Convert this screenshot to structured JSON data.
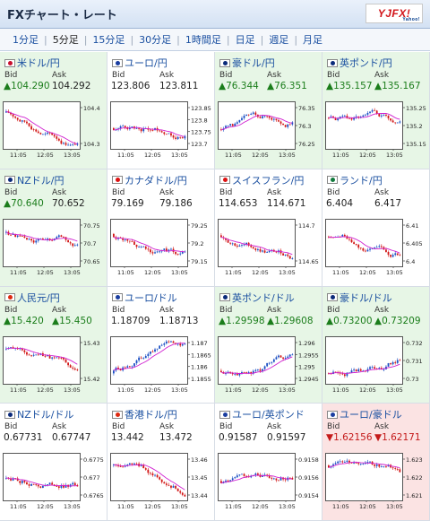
{
  "header": {
    "title": "FXチャート・レート",
    "logo": "YJFX!",
    "logo_sub": "Yahoo!"
  },
  "tabs": [
    {
      "label": "1分足",
      "active": false
    },
    {
      "label": "5分足",
      "active": true
    },
    {
      "label": "15分足",
      "active": false
    },
    {
      "label": "30分足",
      "active": false
    },
    {
      "label": "1時間足",
      "active": false
    },
    {
      "label": "日足",
      "active": false
    },
    {
      "label": "週足",
      "active": false
    },
    {
      "label": "月足",
      "active": false
    }
  ],
  "labels": {
    "bid": "Bid",
    "ask": "Ask"
  },
  "colors": {
    "up_bg": "#e7f6e6",
    "down_bg": "#fbe3e3",
    "up_text": "#1b7d1b",
    "down_text": "#c41a1a",
    "candle_up": "#1a4fc4",
    "candle_down": "#d21616",
    "ma": "#d020d0"
  },
  "pairs": [
    {
      "name": "米ドル/円",
      "flag": "us",
      "bid": "▲104.290",
      "ask": "104.292",
      "bid_dir": "up",
      "ask_dir": "",
      "cell": "up",
      "ticks": [
        "104.4",
        "104.3"
      ],
      "times": [
        "11:05",
        "12:05",
        "13:05"
      ],
      "trend": -1.0
    },
    {
      "name": "ユーロ/円",
      "flag": "eu",
      "bid": "123.806",
      "ask": "123.811",
      "bid_dir": "",
      "ask_dir": "",
      "cell": "",
      "ticks": [
        "123.85",
        "123.8",
        "123.75",
        "123.7"
      ],
      "times": [
        "11:05",
        "12:05",
        "13:05"
      ],
      "trend": 0.2
    },
    {
      "name": "豪ドル/円",
      "flag": "au",
      "bid": "▲76.344",
      "ask": "▲76.351",
      "bid_dir": "up",
      "ask_dir": "up",
      "cell": "up",
      "ticks": [
        "76.35",
        "76.3",
        "76.25"
      ],
      "times": [
        "11:05",
        "12:05",
        "13:05"
      ],
      "trend": 0.3
    },
    {
      "name": "英ポンド/円",
      "flag": "gb",
      "bid": "▲135.157",
      "ask": "▲135.167",
      "bid_dir": "up",
      "ask_dir": "up",
      "cell": "up",
      "ticks": [
        "135.25",
        "135.2",
        "135.15"
      ],
      "times": [
        "11:05",
        "12:05",
        "13:05"
      ],
      "trend": -0.6
    },
    {
      "name": "NZドル/円",
      "flag": "nz",
      "bid": "▲70.640",
      "ask": "70.652",
      "bid_dir": "up",
      "ask_dir": "",
      "cell": "up",
      "ticks": [
        "70.75",
        "70.7",
        "70.65"
      ],
      "times": [
        "11:05",
        "12:05",
        "13:05"
      ],
      "trend": -0.8
    },
    {
      "name": "カナダドル/円",
      "flag": "ca",
      "bid": "79.169",
      "ask": "79.186",
      "bid_dir": "",
      "ask_dir": "",
      "cell": "",
      "ticks": [
        "79.25",
        "79.2",
        "79.15"
      ],
      "times": [
        "11:05",
        "12:05",
        "13:05"
      ],
      "trend": -0.7
    },
    {
      "name": "スイスフラン/円",
      "flag": "ch",
      "bid": "114.653",
      "ask": "114.671",
      "bid_dir": "",
      "ask_dir": "",
      "cell": "",
      "ticks": [
        "114.7",
        "114.65"
      ],
      "times": [
        "11:05",
        "12:05",
        "13:05"
      ],
      "trend": -0.6
    },
    {
      "name": "ランド/円",
      "flag": "za",
      "bid": "6.404",
      "ask": "6.417",
      "bid_dir": "",
      "ask_dir": "",
      "cell": "",
      "ticks": [
        "6.41",
        "6.405",
        "6.4"
      ],
      "times": [
        "11:05",
        "12:05",
        "13:05"
      ],
      "trend": -0.5
    },
    {
      "name": "人民元/円",
      "flag": "cn",
      "bid": "▲15.420",
      "ask": "▲15.450",
      "bid_dir": "up",
      "ask_dir": "up",
      "cell": "up",
      "ticks": [
        "15.43",
        "15.42"
      ],
      "times": [
        "11:05",
        "12:05",
        "13:05"
      ],
      "trend": -0.9
    },
    {
      "name": "ユーロ/ドル",
      "flag": "eu",
      "bid": "1.18709",
      "ask": "1.18713",
      "bid_dir": "",
      "ask_dir": "",
      "cell": "",
      "ticks": [
        "1.187",
        "1.1865",
        "1.186",
        "1.1855"
      ],
      "times": [
        "11:05",
        "12:05",
        "13:05"
      ],
      "trend": 1.0
    },
    {
      "name": "英ポンド/ドル",
      "flag": "gb",
      "bid": "▲1.29598",
      "ask": "▲1.29608",
      "bid_dir": "up",
      "ask_dir": "up",
      "cell": "up",
      "ticks": [
        "1.296",
        "1.2955",
        "1.295",
        "1.2945"
      ],
      "times": [
        "11:05",
        "12:05",
        "13:05"
      ],
      "trend": 0.8
    },
    {
      "name": "豪ドル/ドル",
      "flag": "au",
      "bid": "▲0.73200",
      "ask": "▲0.73209",
      "bid_dir": "up",
      "ask_dir": "up",
      "cell": "up",
      "ticks": [
        "0.732",
        "0.731",
        "0.73"
      ],
      "times": [
        "11:05",
        "12:05",
        "13:05"
      ],
      "trend": 1.0
    },
    {
      "name": "NZドル/ドル",
      "flag": "nz",
      "bid": "0.67731",
      "ask": "0.67747",
      "bid_dir": "",
      "ask_dir": "",
      "cell": "",
      "ticks": [
        "0.6775",
        "0.677",
        "0.6765"
      ],
      "times": [
        "11:05",
        "12:05",
        "13:05"
      ],
      "trend": 0.1
    },
    {
      "name": "香港ドル/円",
      "flag": "hk",
      "bid": "13.442",
      "ask": "13.472",
      "bid_dir": "",
      "ask_dir": "",
      "cell": "",
      "ticks": [
        "13.46",
        "13.45",
        "13.44"
      ],
      "times": [
        "11:05",
        "12:05",
        "13:05"
      ],
      "trend": -0.9
    },
    {
      "name": "ユーロ/英ポンド",
      "flag": "eu",
      "bid": "0.91587",
      "ask": "0.91597",
      "bid_dir": "",
      "ask_dir": "",
      "cell": "",
      "ticks": [
        "0.9158",
        "0.9156",
        "0.9154"
      ],
      "times": [
        "11:05",
        "12:05",
        "13:05"
      ],
      "trend": 0.3
    },
    {
      "name": "ユーロ/豪ドル",
      "flag": "eu",
      "bid": "▼1.62156",
      "ask": "▼1.62171",
      "bid_dir": "down",
      "ask_dir": "down",
      "cell": "down",
      "ticks": [
        "1.623",
        "1.622",
        "1.621"
      ],
      "times": [
        "11:05",
        "12:05",
        "13:05"
      ],
      "trend": -0.9
    }
  ]
}
